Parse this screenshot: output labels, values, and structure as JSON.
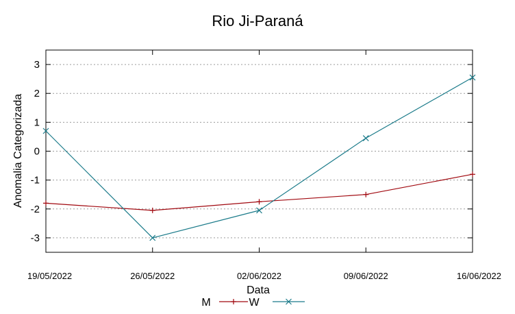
{
  "chart_data": {
    "type": "line",
    "title": "Rio Ji-Paraná",
    "xlabel": "Data",
    "ylabel": "Anomalia Categorizada",
    "categories": [
      "19/05/2022",
      "26/05/2022",
      "02/06/2022",
      "09/06/2022",
      "16/06/2022"
    ],
    "ylim": [
      -3.5,
      3.5
    ],
    "yticks": [
      3,
      2,
      1,
      0,
      -1,
      -2,
      -3
    ],
    "ytick_labels": [
      "3",
      "2",
      "1",
      "0",
      "-1",
      "-2",
      "-3"
    ],
    "grid": "horizontal-dotted",
    "legend_position": "bottom",
    "series": [
      {
        "name": "M",
        "color": "#a0070e",
        "marker": "plus",
        "values": [
          -1.8,
          -2.05,
          -1.75,
          -1.5,
          -0.8
        ]
      },
      {
        "name": "W",
        "color": "#1b7b8a",
        "marker": "cross",
        "values": [
          0.7,
          -3.0,
          -2.05,
          0.45,
          2.55
        ]
      }
    ]
  }
}
